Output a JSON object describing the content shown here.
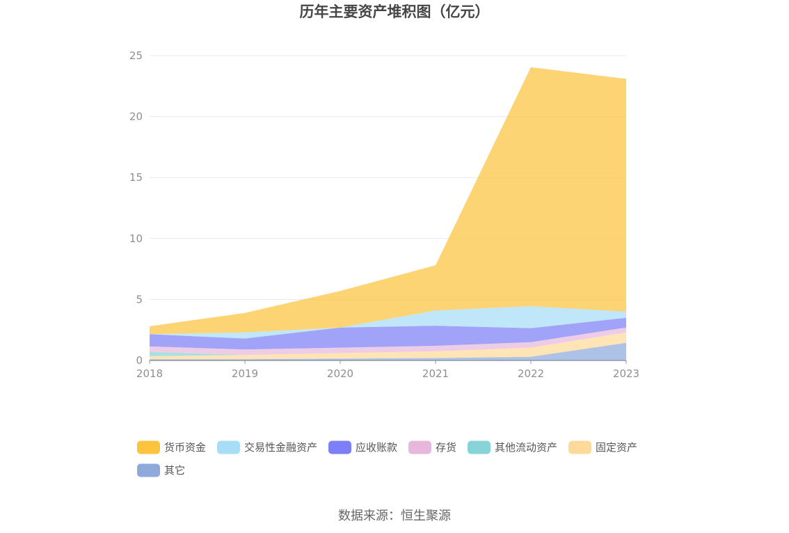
{
  "chart_data": {
    "type": "area",
    "stacked": true,
    "title": "历年主要资产堆积图（亿元）",
    "categories": [
      "2018",
      "2019",
      "2020",
      "2021",
      "2022",
      "2023"
    ],
    "ylim": [
      0,
      25
    ],
    "yticks": [
      0,
      5,
      10,
      15,
      20,
      25
    ],
    "grid": true,
    "legend_position": "bottom",
    "series": [
      {
        "name": "其它",
        "color": "#8eaadb",
        "values": [
          0.1,
          0.1,
          0.15,
          0.2,
          0.3,
          1.45
        ]
      },
      {
        "name": "固定资产",
        "color": "#ffd99a",
        "values": [
          0.25,
          0.35,
          0.45,
          0.55,
          0.75,
          0.85
        ]
      },
      {
        "name": "其他流动资产",
        "color": "#86d4d8",
        "values": [
          0.35,
          0.0,
          0.0,
          0.0,
          0.0,
          0.0
        ]
      },
      {
        "name": "存货",
        "color": "#e8b8dc",
        "values": [
          0.45,
          0.45,
          0.45,
          0.45,
          0.45,
          0.4
        ]
      },
      {
        "name": "应收账款",
        "color": "#7c7ff5",
        "values": [
          1.0,
          0.9,
          1.65,
          1.65,
          1.15,
          0.8
        ]
      },
      {
        "name": "交易性金融资产",
        "color": "#a8ddf7",
        "values": [
          0.0,
          0.5,
          0.0,
          1.25,
          1.8,
          0.5
        ]
      },
      {
        "name": "货币资金",
        "color": "#fcc43d",
        "values": [
          0.65,
          1.6,
          3.0,
          3.7,
          19.6,
          19.1
        ]
      }
    ],
    "legend_order": [
      "货币资金",
      "交易性金融资产",
      "应收账款",
      "存货",
      "其他流动资产",
      "固定资产",
      "其它"
    ]
  },
  "source": "数据来源：恒生聚源"
}
